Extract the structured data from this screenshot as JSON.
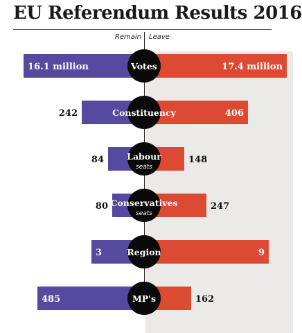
{
  "title": "EU Referendum Results 2016",
  "headers": {
    "remain": "Remain",
    "leave": "Leave"
  },
  "colors": {
    "remain": "#564aa0",
    "leave": "#dd4a33",
    "circle": "#0a0a0a"
  },
  "chart_data": {
    "type": "bar",
    "title": "EU Referendum Results 2016",
    "series_labels": [
      "Remain",
      "Leave"
    ],
    "rows": [
      {
        "label": "Votes",
        "sublabel": "",
        "remain": 16.1,
        "leave": 17.4,
        "remain_label": "16.1 million",
        "leave_label": "17.4 million"
      },
      {
        "label": "Constituency",
        "sublabel": "",
        "remain": 242,
        "leave": 406,
        "remain_label": "242",
        "leave_label": "406"
      },
      {
        "label": "Labour",
        "sublabel": "seats",
        "remain": 84,
        "leave": 148,
        "remain_label": "84",
        "leave_label": "148"
      },
      {
        "label": "Conservatives",
        "sublabel": "seats",
        "remain": 80,
        "leave": 247,
        "remain_label": "80",
        "leave_label": "247"
      },
      {
        "label": "Region",
        "sublabel": "",
        "remain": 3,
        "leave": 9,
        "remain_label": "3",
        "leave_label": "9"
      },
      {
        "label": "MP's",
        "sublabel": "",
        "remain": 485,
        "leave": 162,
        "remain_label": "485",
        "leave_label": "162"
      }
    ]
  }
}
